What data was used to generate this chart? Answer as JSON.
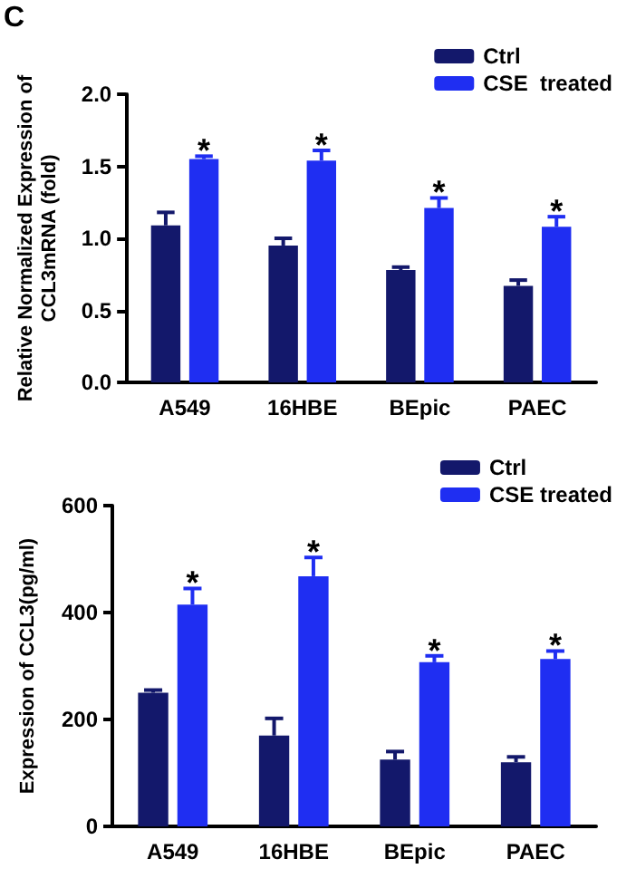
{
  "chart_data": [
    {
      "type": "bar",
      "ylabel": "Relative Normalized Expression of CCL3mRNA (fold)",
      "categories": [
        "A549",
        "16HBE",
        "BEpic",
        "PAEC"
      ],
      "series": [
        {
          "name": "Ctrl",
          "color": "#13186b",
          "values": [
            1.09,
            0.95,
            0.78,
            0.67
          ],
          "errors": [
            0.09,
            0.05,
            0.02,
            0.04
          ]
        },
        {
          "name": "CSE  treated",
          "color": "#1f2ef2",
          "values": [
            1.55,
            1.54,
            1.21,
            1.08
          ],
          "errors": [
            0.02,
            0.07,
            0.07,
            0.07
          ]
        }
      ],
      "ylim": [
        0,
        2
      ],
      "yticks": [
        {
          "value": 0,
          "label": "0.0"
        },
        {
          "value": 0.5,
          "label": "0.5"
        },
        {
          "value": 1,
          "label": "1.0"
        },
        {
          "value": 1.5,
          "label": "1.5"
        },
        {
          "value": 2,
          "label": "2.0"
        }
      ],
      "grid": false,
      "legend": "top right",
      "annotations": [
        "C",
        {
          "text": "*",
          "x": "A549",
          "y": 1.55
        },
        {
          "text": "*",
          "x": "16HBE",
          "y": 1.54
        },
        {
          "text": "*",
          "x": "BEpic",
          "y": 1.21
        },
        {
          "text": "*",
          "x": "PAEC",
          "y": 1.08
        }
      ]
    },
    {
      "type": "bar",
      "ylabel": "Expression of CCL3(pg/ml)",
      "categories": [
        "A549",
        "16HBE",
        "BEpic",
        "PAEC"
      ],
      "series": [
        {
          "name": "Ctrl",
          "color": "#13186b",
          "values": [
            250,
            170,
            125,
            120
          ],
          "errors": [
            5,
            32,
            15,
            10
          ]
        },
        {
          "name": "CSE treated",
          "color": "#1f2ef2",
          "values": [
            415,
            468,
            307,
            313
          ],
          "errors": [
            30,
            35,
            12,
            15
          ]
        }
      ],
      "ylim": [
        0,
        600
      ],
      "yticks": [
        0,
        200,
        400,
        600
      ],
      "grid": false,
      "legend": "top right",
      "annotations": [
        {
          "text": "*",
          "x": "A549",
          "y": 415
        },
        {
          "text": "*",
          "x": "16HBE",
          "y": 468
        },
        {
          "text": "*",
          "x": "BEpic",
          "y": 307
        },
        {
          "text": "*",
          "x": "PAEC",
          "y": 313
        }
      ]
    }
  ]
}
